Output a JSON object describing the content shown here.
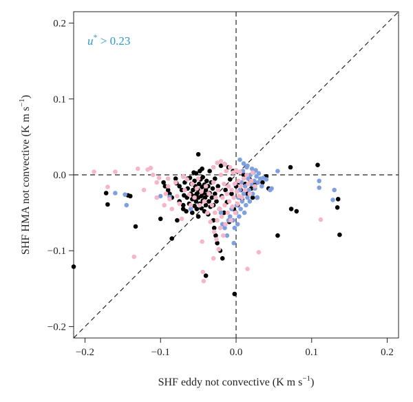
{
  "chart_data": {
    "type": "scatter",
    "xlabel": "SHF eddy not convective (K m s",
    "xlabel_unit_sup": "−1",
    "xlabel_end": ")",
    "ylabel": "SHF HMA not convective (K m s",
    "ylabel_unit_sup": "−1",
    "ylabel_end": ")",
    "annotation": {
      "symbol": "u",
      "sup": "*",
      "text": " > 0.23"
    },
    "xlim": [
      -0.215,
      0.215
    ],
    "ylim": [
      -0.215,
      0.215
    ],
    "xticks": [
      -0.2,
      -0.1,
      0.0,
      0.1,
      0.2
    ],
    "xtick_labels": [
      "−0.2",
      "−0.1",
      "0.0",
      "0.1",
      "0.2"
    ],
    "yticks": [
      -0.2,
      -0.1,
      0.0,
      0.1,
      0.2
    ],
    "ytick_labels": [
      "−0.2",
      "−0.1",
      "0.0",
      "0.1",
      "0.2"
    ],
    "reference_lines": {
      "x0": true,
      "y0": true,
      "one_to_one": true
    },
    "grid": false,
    "series": [
      {
        "color": "#000000",
        "points": [
          [
            -0.215,
            -0.121
          ],
          [
            -0.172,
            -0.024
          ],
          [
            -0.17,
            -0.039
          ],
          [
            -0.143,
            -0.027
          ],
          [
            -0.14,
            -0.028
          ],
          [
            -0.133,
            -0.068
          ],
          [
            -0.1,
            -0.058
          ],
          [
            -0.096,
            -0.01
          ],
          [
            -0.094,
            -0.015
          ],
          [
            -0.09,
            -0.02
          ],
          [
            -0.088,
            -0.025
          ],
          [
            -0.085,
            -0.03
          ],
          [
            -0.085,
            -0.084
          ],
          [
            -0.08,
            -0.005
          ],
          [
            -0.079,
            -0.011
          ],
          [
            -0.078,
            -0.06
          ],
          [
            -0.075,
            -0.015
          ],
          [
            -0.075,
            -0.035
          ],
          [
            -0.072,
            -0.02
          ],
          [
            -0.07,
            -0.002
          ],
          [
            -0.07,
            -0.04
          ],
          [
            -0.069,
            -0.027
          ],
          [
            -0.068,
            -0.01
          ],
          [
            -0.066,
            -0.048
          ],
          [
            -0.065,
            -0.03
          ],
          [
            -0.064,
            -0.018
          ],
          [
            -0.062,
            -0.038
          ],
          [
            -0.061,
            -0.004
          ],
          [
            -0.06,
            -0.025
          ],
          [
            -0.059,
            -0.012
          ],
          [
            -0.058,
            -0.032
          ],
          [
            -0.058,
            -0.05
          ],
          [
            -0.057,
            -0.02
          ],
          [
            -0.056,
            -0.028
          ],
          [
            -0.055,
            -0.041
          ],
          [
            -0.055,
            -0.008
          ],
          [
            -0.054,
            -0.015
          ],
          [
            -0.053,
            -0.035
          ],
          [
            -0.052,
            -0.025
          ],
          [
            -0.052,
            -0.045
          ],
          [
            -0.051,
            -0.019
          ],
          [
            -0.05,
            -0.03
          ],
          [
            -0.05,
            0.027
          ],
          [
            -0.05,
            -0.055
          ],
          [
            -0.049,
            -0.012
          ],
          [
            -0.048,
            -0.038
          ],
          [
            -0.048,
            -0.022
          ],
          [
            -0.047,
            -0.006
          ],
          [
            -0.046,
            -0.028
          ],
          [
            -0.046,
            -0.044
          ],
          [
            -0.045,
            -0.016
          ],
          [
            -0.044,
            -0.034
          ],
          [
            -0.044,
            -0.003
          ],
          [
            -0.043,
            -0.024
          ],
          [
            -0.042,
            -0.048
          ],
          [
            -0.042,
            -0.013
          ],
          [
            -0.041,
            -0.03
          ],
          [
            -0.04,
            -0.02
          ],
          [
            -0.04,
            -0.04
          ],
          [
            -0.039,
            -0.008
          ],
          [
            -0.038,
            -0.026
          ],
          [
            -0.037,
            -0.052
          ],
          [
            -0.037,
            -0.015
          ],
          [
            -0.036,
            -0.035
          ],
          [
            -0.035,
            0.005
          ],
          [
            -0.035,
            -0.024
          ],
          [
            -0.034,
            -0.042
          ],
          [
            -0.033,
            -0.01
          ],
          [
            -0.032,
            -0.03
          ],
          [
            -0.031,
            -0.018
          ],
          [
            -0.03,
            -0.06
          ],
          [
            -0.03,
            -0.04
          ],
          [
            -0.029,
            -0.07
          ],
          [
            -0.028,
            -0.005
          ],
          [
            -0.028,
            -0.025
          ],
          [
            -0.027,
            -0.08
          ],
          [
            -0.026,
            -0.035
          ],
          [
            -0.025,
            -0.09
          ],
          [
            -0.024,
            -0.015
          ],
          [
            -0.022,
            -0.045
          ],
          [
            -0.021,
            -0.1
          ],
          [
            -0.02,
            0.012
          ],
          [
            -0.019,
            -0.028
          ],
          [
            -0.018,
            -0.11
          ],
          [
            -0.016,
            -0.05
          ],
          [
            -0.015,
            0.014
          ],
          [
            -0.014,
            -0.02
          ],
          [
            -0.012,
            -0.036
          ],
          [
            -0.01,
            0.01
          ],
          [
            -0.009,
            -0.062
          ],
          [
            -0.008,
            -0.006
          ],
          [
            -0.006,
            -0.025
          ],
          [
            -0.004,
            0.005
          ],
          [
            -0.003,
            -0.045
          ],
          [
            -0.002,
            -0.157
          ],
          [
            0.0,
            -0.015
          ],
          [
            0.002,
            -0.04
          ],
          [
            0.004,
            -0.01
          ],
          [
            0.006,
            -0.02
          ],
          [
            0.008,
            -0.032
          ],
          [
            0.01,
            0.0
          ],
          [
            0.012,
            -0.012
          ],
          [
            0.015,
            -0.025
          ],
          [
            0.018,
            -0.006
          ],
          [
            0.02,
            -0.018
          ],
          [
            0.022,
            -0.03
          ],
          [
            0.025,
            -0.012
          ],
          [
            0.028,
            -0.03
          ],
          [
            0.035,
            -0.01
          ],
          [
            0.04,
            -0.002
          ],
          [
            0.043,
            -0.018
          ],
          [
            0.055,
            -0.08
          ],
          [
            0.072,
            0.01
          ],
          [
            0.073,
            -0.045
          ],
          [
            0.08,
            -0.048
          ],
          [
            0.108,
            0.013
          ],
          [
            0.134,
            -0.043
          ],
          [
            0.135,
            -0.032
          ],
          [
            0.137,
            -0.079
          ],
          [
            -0.04,
            -0.133
          ],
          [
            -0.064,
            -0.005
          ],
          [
            -0.056,
            0.003
          ],
          [
            -0.053,
            0.002
          ],
          [
            -0.048,
            0.005
          ],
          [
            -0.045,
            0.008
          ],
          [
            -0.07,
            -0.045
          ]
        ]
      },
      {
        "color": "#7fa0e0",
        "points": [
          [
            -0.16,
            -0.024
          ],
          [
            -0.147,
            -0.026
          ],
          [
            -0.145,
            -0.04
          ],
          [
            -0.1,
            -0.028
          ],
          [
            -0.088,
            -0.029
          ],
          [
            -0.06,
            -0.045
          ],
          [
            -0.02,
            -0.05
          ],
          [
            -0.018,
            -0.065
          ],
          [
            -0.015,
            -0.07
          ],
          [
            -0.012,
            -0.08
          ],
          [
            -0.01,
            -0.06
          ],
          [
            -0.008,
            -0.055
          ],
          [
            -0.006,
            -0.045
          ],
          [
            -0.004,
            -0.06
          ],
          [
            -0.003,
            -0.09
          ],
          [
            -0.002,
            -0.07
          ],
          [
            0.0,
            -0.05
          ],
          [
            0.001,
            -0.04
          ],
          [
            0.002,
            -0.065
          ],
          [
            0.003,
            -0.03
          ],
          [
            0.004,
            -0.055
          ],
          [
            0.005,
            -0.02
          ],
          [
            0.006,
            -0.045
          ],
          [
            0.007,
            -0.01
          ],
          [
            0.008,
            -0.035
          ],
          [
            0.009,
            0.005
          ],
          [
            0.01,
            -0.025
          ],
          [
            0.011,
            -0.05
          ],
          [
            0.012,
            -0.015
          ],
          [
            0.013,
            -0.04
          ],
          [
            0.014,
            0.01
          ],
          [
            0.015,
            -0.03
          ],
          [
            0.016,
            -0.005
          ],
          [
            0.017,
            -0.02
          ],
          [
            0.018,
            -0.035
          ],
          [
            0.019,
            0.0
          ],
          [
            0.02,
            -0.012
          ],
          [
            0.021,
            0.008
          ],
          [
            0.022,
            -0.025
          ],
          [
            0.023,
            0.003
          ],
          [
            0.024,
            -0.008
          ],
          [
            0.025,
            -0.018
          ],
          [
            0.026,
            0.006
          ],
          [
            0.027,
            -0.002
          ],
          [
            0.028,
            -0.03
          ],
          [
            0.029,
            -0.01
          ],
          [
            0.03,
            0.002
          ],
          [
            0.032,
            -0.005
          ],
          [
            0.034,
            -0.015
          ],
          [
            0.036,
            -0.004
          ],
          [
            0.04,
            -0.006
          ],
          [
            0.045,
            -0.02
          ],
          [
            0.047,
            -0.018
          ],
          [
            0.055,
            0.005
          ],
          [
            0.11,
            -0.008
          ],
          [
            0.11,
            -0.017
          ],
          [
            0.128,
            -0.033
          ],
          [
            0.13,
            -0.02
          ],
          [
            0.005,
            0.02
          ],
          [
            0.01,
            0.015
          ],
          [
            0.015,
            0.012
          ]
        ]
      },
      {
        "color": "#f5b7c8",
        "points": [
          [
            -0.188,
            0.004
          ],
          [
            -0.17,
            -0.016
          ],
          [
            -0.16,
            0.004
          ],
          [
            -0.135,
            -0.108
          ],
          [
            -0.13,
            0.008
          ],
          [
            -0.122,
            -0.02
          ],
          [
            -0.117,
            0.007
          ],
          [
            -0.113,
            0.009
          ],
          [
            -0.105,
            -0.01
          ],
          [
            -0.105,
            -0.03
          ],
          [
            -0.102,
            -0.004
          ],
          [
            -0.095,
            -0.04
          ],
          [
            -0.093,
            -0.025
          ],
          [
            -0.09,
            -0.005
          ],
          [
            -0.088,
            -0.032
          ],
          [
            -0.085,
            -0.045
          ],
          [
            -0.08,
            -0.01
          ],
          [
            -0.078,
            -0.028
          ],
          [
            -0.075,
            -0.038
          ],
          [
            -0.072,
            -0.058
          ],
          [
            -0.068,
            -0.02
          ],
          [
            -0.065,
            -0.006
          ],
          [
            -0.062,
            -0.026
          ],
          [
            -0.06,
            -0.04
          ],
          [
            -0.058,
            -0.012
          ],
          [
            -0.055,
            -0.03
          ],
          [
            -0.052,
            -0.018
          ],
          [
            -0.05,
            -0.005
          ],
          [
            -0.048,
            -0.04
          ],
          [
            -0.046,
            -0.022
          ],
          [
            -0.044,
            -0.128
          ],
          [
            -0.043,
            -0.14
          ],
          [
            -0.042,
            -0.035
          ],
          [
            -0.04,
            -0.015
          ],
          [
            -0.038,
            -0.05
          ],
          [
            -0.036,
            -0.025
          ],
          [
            -0.034,
            -0.062
          ],
          [
            -0.032,
            -0.04
          ],
          [
            -0.03,
            -0.01
          ],
          [
            -0.029,
            -0.075
          ],
          [
            -0.028,
            -0.05
          ],
          [
            -0.027,
            -0.03
          ],
          [
            -0.026,
            -0.085
          ],
          [
            -0.025,
            -0.06
          ],
          [
            -0.024,
            -0.02
          ],
          [
            -0.023,
            -0.098
          ],
          [
            -0.022,
            -0.045
          ],
          [
            -0.021,
            -0.07
          ],
          [
            -0.02,
            0.0
          ],
          [
            -0.019,
            -0.055
          ],
          [
            -0.018,
            -0.03
          ],
          [
            -0.017,
            -0.08
          ],
          [
            -0.016,
            -0.012
          ],
          [
            -0.015,
            -0.04
          ],
          [
            -0.014,
            -0.065
          ],
          [
            -0.013,
            0.005
          ],
          [
            -0.012,
            -0.025
          ],
          [
            -0.011,
            -0.05
          ],
          [
            -0.01,
            -0.015
          ],
          [
            -0.009,
            -0.035
          ],
          [
            -0.008,
            0.01
          ],
          [
            -0.007,
            -0.06
          ],
          [
            -0.006,
            -0.02
          ],
          [
            -0.005,
            -0.042
          ],
          [
            -0.004,
            0.003
          ],
          [
            -0.003,
            -0.03
          ],
          [
            -0.002,
            -0.012
          ],
          [
            -0.001,
            -0.05
          ],
          [
            0.0,
            0.006
          ],
          [
            0.001,
            -0.022
          ],
          [
            0.002,
            -0.038
          ],
          [
            0.003,
            -0.008
          ],
          [
            0.004,
            -0.028
          ],
          [
            0.005,
            0.004
          ],
          [
            0.006,
            -0.015
          ],
          [
            0.008,
            -0.03
          ],
          [
            0.01,
            -0.005
          ],
          [
            0.012,
            -0.02
          ],
          [
            0.014,
            0.0
          ],
          [
            0.016,
            -0.012
          ],
          [
            0.018,
            -0.025
          ],
          [
            0.02,
            -0.008
          ],
          [
            0.022,
            0.003
          ],
          [
            0.025,
            -0.015
          ],
          [
            0.03,
            -0.102
          ],
          [
            0.015,
            -0.124
          ],
          [
            -0.03,
            -0.11
          ],
          [
            -0.045,
            -0.088
          ],
          [
            -0.03,
            0.01
          ],
          [
            -0.025,
            0.016
          ],
          [
            -0.015,
            0.014
          ],
          [
            -0.02,
            0.018
          ],
          [
            0.112,
            -0.059
          ],
          [
            -0.11,
            0.0
          ],
          [
            -0.09,
            -0.015
          ],
          [
            -0.07,
            -0.002
          ]
        ]
      }
    ]
  }
}
